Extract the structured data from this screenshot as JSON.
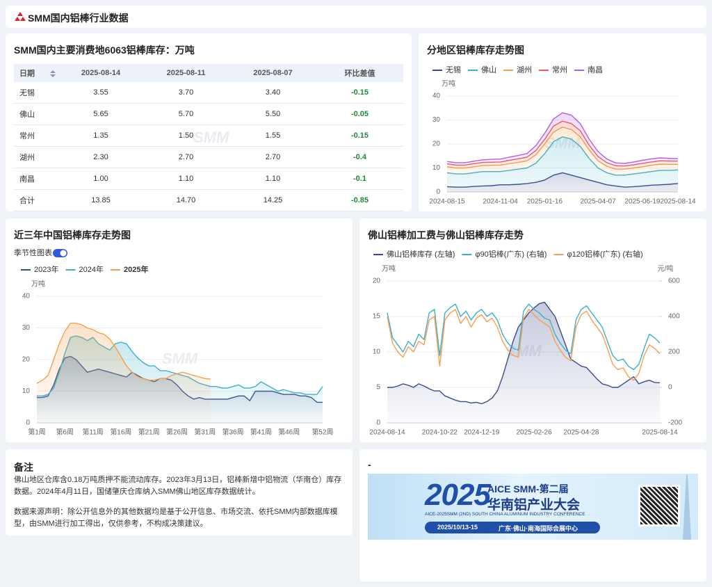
{
  "header": {
    "title": "SMM国内铝棒行业数据"
  },
  "watermark": "SMM",
  "table": {
    "title": "SMM国内主要消费地6063铝棒库存：万吨",
    "columns": [
      "日期",
      "2025-08-14",
      "2025-08-11",
      "2025-08-07",
      "环比差值"
    ],
    "rows": [
      [
        "无锡",
        "3.55",
        "3.70",
        "3.40",
        "-0.15"
      ],
      [
        "佛山",
        "5.65",
        "5.70",
        "5.50",
        "-0.05"
      ],
      [
        "常州",
        "1.35",
        "1.50",
        "1.55",
        "-0.15"
      ],
      [
        "湖州",
        "2.30",
        "2.70",
        "2.70",
        "-0.4"
      ],
      [
        "南昌",
        "1.00",
        "1.10",
        "1.10",
        "-0.1"
      ],
      [
        "合计",
        "13.85",
        "14.70",
        "14.25",
        "-0.85"
      ]
    ]
  },
  "chart_data": [
    {
      "type": "line",
      "stacked": true,
      "title": "分地区铝棒库存走势图",
      "y_unit": "万吨",
      "categories": [
        "2024-08-15",
        null,
        null,
        null,
        null,
        null,
        "2024-11-04",
        null,
        null,
        null,
        null,
        "2025-01-16",
        null,
        null,
        null,
        null,
        null,
        "2025-04-07",
        null,
        null,
        null,
        null,
        "2025-06-19",
        null,
        null,
        null,
        "2025-08-14"
      ],
      "series": [
        {
          "name": "无锡",
          "color": "#3a4a8c",
          "area": true,
          "values": [
            2.2,
            2,
            2,
            2.3,
            2.5,
            2.6,
            3,
            3,
            3.2,
            3.5,
            4,
            5,
            7,
            8,
            7,
            6,
            5,
            4,
            3,
            2.5,
            2,
            2.2,
            2.5,
            2.8,
            3,
            3.2,
            3.55
          ]
        },
        {
          "name": "佛山",
          "color": "#3bb0c9",
          "area": true,
          "values": [
            5.8,
            5.5,
            5.5,
            5.7,
            6,
            5.9,
            5.5,
            6,
            6.3,
            6.5,
            8,
            11,
            14,
            15,
            15,
            13,
            9,
            6,
            5,
            4.5,
            5,
            5.3,
            5.5,
            5.7,
            6,
            5.8,
            5.65
          ]
        },
        {
          "name": "湖州",
          "color": "#f5a04d",
          "area": true,
          "values": [
            2.5,
            2.5,
            2.5,
            2.5,
            2.5,
            2.6,
            2.7,
            2.8,
            2.8,
            3,
            3.5,
            4,
            4,
            4,
            4,
            4,
            3.5,
            3,
            2.7,
            2.5,
            2.5,
            2.5,
            2.5,
            2.6,
            2.6,
            2.5,
            2.3
          ]
        },
        {
          "name": "常州",
          "color": "#f05a5a",
          "area": true,
          "values": [
            1.2,
            1.2,
            1.2,
            1.3,
            1.3,
            1.3,
            1.3,
            1.4,
            1.5,
            1.5,
            1.8,
            2,
            2.5,
            2.5,
            2.5,
            2.5,
            2,
            1.8,
            1.5,
            1.4,
            1.3,
            1.3,
            1.4,
            1.4,
            1.4,
            1.4,
            1.35
          ]
        },
        {
          "name": "南昌",
          "color": "#b05ee8",
          "area": true,
          "values": [
            1,
            1,
            1,
            1,
            1.1,
            1.2,
            1.2,
            1.3,
            1.4,
            1.5,
            2,
            2.5,
            3,
            3.5,
            3.5,
            3,
            2.5,
            2,
            1.5,
            1.2,
            1.1,
            1.2,
            1.3,
            1.3,
            1.2,
            1.1,
            1.0
          ]
        }
      ],
      "ylim": [
        0,
        40
      ],
      "yticks": [
        0,
        10,
        20,
        30,
        40
      ],
      "grid": true
    },
    {
      "type": "line",
      "title": "近三年中国铝棒库存走势图",
      "toggle": "季节性图表",
      "y_unit": "万吨",
      "highlight_series": 2,
      "categories": [
        "第1周",
        null,
        null,
        null,
        null,
        "第6周",
        null,
        null,
        null,
        null,
        "第11周",
        null,
        null,
        null,
        null,
        "第16周",
        null,
        null,
        null,
        null,
        "第21周",
        null,
        null,
        null,
        null,
        "第26周",
        null,
        null,
        null,
        null,
        "第31周",
        null,
        null,
        null,
        null,
        "第36周",
        null,
        null,
        null,
        null,
        "第41周",
        null,
        null,
        null,
        null,
        "第46周",
        null,
        null,
        null,
        null,
        null,
        "第52周"
      ],
      "series": [
        {
          "name": "2023年",
          "color": "#3a4a8c",
          "area": true,
          "values": [
            8,
            8,
            8.5,
            12,
            17,
            20.5,
            21,
            20,
            18,
            16,
            16.5,
            17,
            16.5,
            16,
            15.5,
            15,
            14.5,
            16,
            15,
            14,
            13.5,
            13,
            14,
            14,
            13.5,
            12,
            10,
            8.5,
            7.5,
            8,
            7.5,
            7.5,
            7.5,
            7.5,
            7.5,
            8,
            8.5,
            8.5,
            7,
            10,
            10,
            10,
            10,
            9.5,
            9,
            9,
            9,
            8.5,
            8.5,
            8,
            6.5,
            6.5
          ]
        },
        {
          "name": "2024年",
          "color": "#3bb0c9",
          "area": true,
          "values": [
            8.5,
            8.5,
            9,
            11,
            16,
            22,
            27,
            27.5,
            27,
            26,
            27,
            25,
            24,
            23,
            25,
            25.5,
            25,
            22.5,
            20.5,
            19,
            18,
            18,
            16.5,
            16.5,
            16,
            15.5,
            15,
            14.5,
            13.5,
            12.5,
            12,
            11.5,
            11.5,
            11,
            11,
            11.5,
            12,
            11,
            11,
            11.5,
            13,
            12,
            11,
            10,
            10.5,
            10,
            9.5,
            9.5,
            9,
            9,
            9,
            11.5
          ]
        },
        {
          "name": "2025年",
          "color": "#f5a04d",
          "area": true,
          "values": [
            12.5,
            13.5,
            15,
            20,
            25,
            29,
            31.5,
            31.5,
            31,
            30,
            29.5,
            28.5,
            28,
            26.5,
            24,
            21,
            18,
            16,
            14.5,
            14,
            13.5,
            13.5,
            14,
            14,
            15,
            15.5,
            16,
            15.5,
            15,
            14.5,
            14,
            13.85,
            null,
            null,
            null,
            null,
            null,
            null,
            null,
            null,
            null,
            null,
            null,
            null,
            null,
            null,
            null,
            null,
            null,
            null,
            null,
            null
          ]
        }
      ],
      "ylim": [
        0,
        40
      ],
      "yticks": [
        0,
        10,
        20,
        30,
        40
      ],
      "grid": true
    },
    {
      "type": "line",
      "title": "佛山铝棒加工费与佛山铝棒库存走势",
      "y_unit": "万吨",
      "y2_unit": "元/吨",
      "categories": [
        "2024-08-14",
        null,
        null,
        null,
        null,
        null,
        null,
        null,
        null,
        null,
        "2024-10-22",
        null,
        null,
        null,
        null,
        null,
        null,
        null,
        "2024-12-19",
        null,
        null,
        null,
        null,
        null,
        null,
        null,
        null,
        null,
        "2025-02-26",
        null,
        null,
        null,
        null,
        null,
        null,
        null,
        null,
        "2025-04-28",
        null,
        null,
        null,
        null,
        null,
        null,
        null,
        null,
        null,
        null,
        null,
        null,
        null,
        null,
        "2025-08-14"
      ],
      "series": [
        {
          "name": "佛山铝棒库存 (左轴)",
          "color": "#3a4a8c",
          "area": true,
          "values": [
            5.0,
            5.0,
            5.2,
            5.5,
            5.3,
            5.0,
            5.5,
            5.2,
            4.8,
            4.5,
            4.5,
            3.8,
            3.5,
            3.2,
            3.0,
            3.0,
            2.8,
            2.9,
            2.7,
            3.0,
            3.5,
            4.5,
            6.5,
            9,
            11.5,
            13.5,
            14.5,
            15.5,
            16.2,
            16.8,
            17,
            16,
            15,
            13,
            11,
            9,
            8.5,
            8,
            7.8,
            7,
            6.2,
            5.5,
            5.3,
            5,
            5,
            5.5,
            6,
            6.5,
            5.5,
            5.8,
            6,
            5.7,
            5.65
          ]
        },
        {
          "name": "φ90铝棒(广东) (右轴)",
          "color": "#3bb0c9",
          "axis": "y2",
          "values": [
            420,
            280,
            240,
            200,
            260,
            230,
            300,
            270,
            420,
            440,
            180,
            420,
            450,
            470,
            400,
            430,
            380,
            420,
            440,
            400,
            420,
            380,
            300,
            250,
            220,
            210,
            430,
            470,
            440,
            420,
            390,
            380,
            300,
            250,
            210,
            190,
            380,
            440,
            460,
            420,
            380,
            340,
            260,
            180,
            150,
            160,
            120,
            100,
            130,
            220,
            300,
            280,
            250
          ]
        },
        {
          "name": "φ120铝棒(广东) (右轴)",
          "color": "#f5a04d",
          "axis": "y2",
          "values": [
            400,
            250,
            200,
            170,
            230,
            200,
            260,
            240,
            380,
            400,
            120,
            380,
            420,
            440,
            360,
            400,
            340,
            390,
            410,
            370,
            390,
            340,
            260,
            210,
            180,
            170,
            390,
            440,
            410,
            380,
            360,
            340,
            260,
            210,
            170,
            150,
            340,
            410,
            430,
            380,
            340,
            300,
            220,
            130,
            100,
            110,
            60,
            40,
            80,
            180,
            240,
            220,
            190
          ]
        }
      ],
      "ylim": [
        0,
        20
      ],
      "yticks": [
        0,
        5,
        10,
        15,
        20
      ],
      "y2lim": [
        -200,
        600
      ],
      "y2ticks": [
        -200,
        0,
        200,
        400,
        600
      ],
      "grid": true
    }
  ],
  "notes": {
    "title": "备注",
    "paragraphs": [
      "佛山地区仓库含0.18万吨质押不能流动库存。2023年3月13日，铝棒新增中铝物流（华南仓）库存数据。2024年4月11日，国储肇庆仓库纳入SMM佛山地区库存数据统计。",
      "数据来源声明：除公开信息外的其他数据均是基于公开信息、市场交流、依托SMM内部数据库模型，由SMM进行加工得出，仅供参考，不构成决策建议。"
    ]
  },
  "banner": {
    "title": "-",
    "year": "2025",
    "edition": "AICE SMM-第二届",
    "name": "华南铝产业大会",
    "subtitle": "AICE-2025SMM (2ND) SOUTH CHINA ALUMINUM INDUSTRY CONFERENCE",
    "date": "2025/10/13-15",
    "venue": "广东·佛山·南海国际会展中心"
  }
}
